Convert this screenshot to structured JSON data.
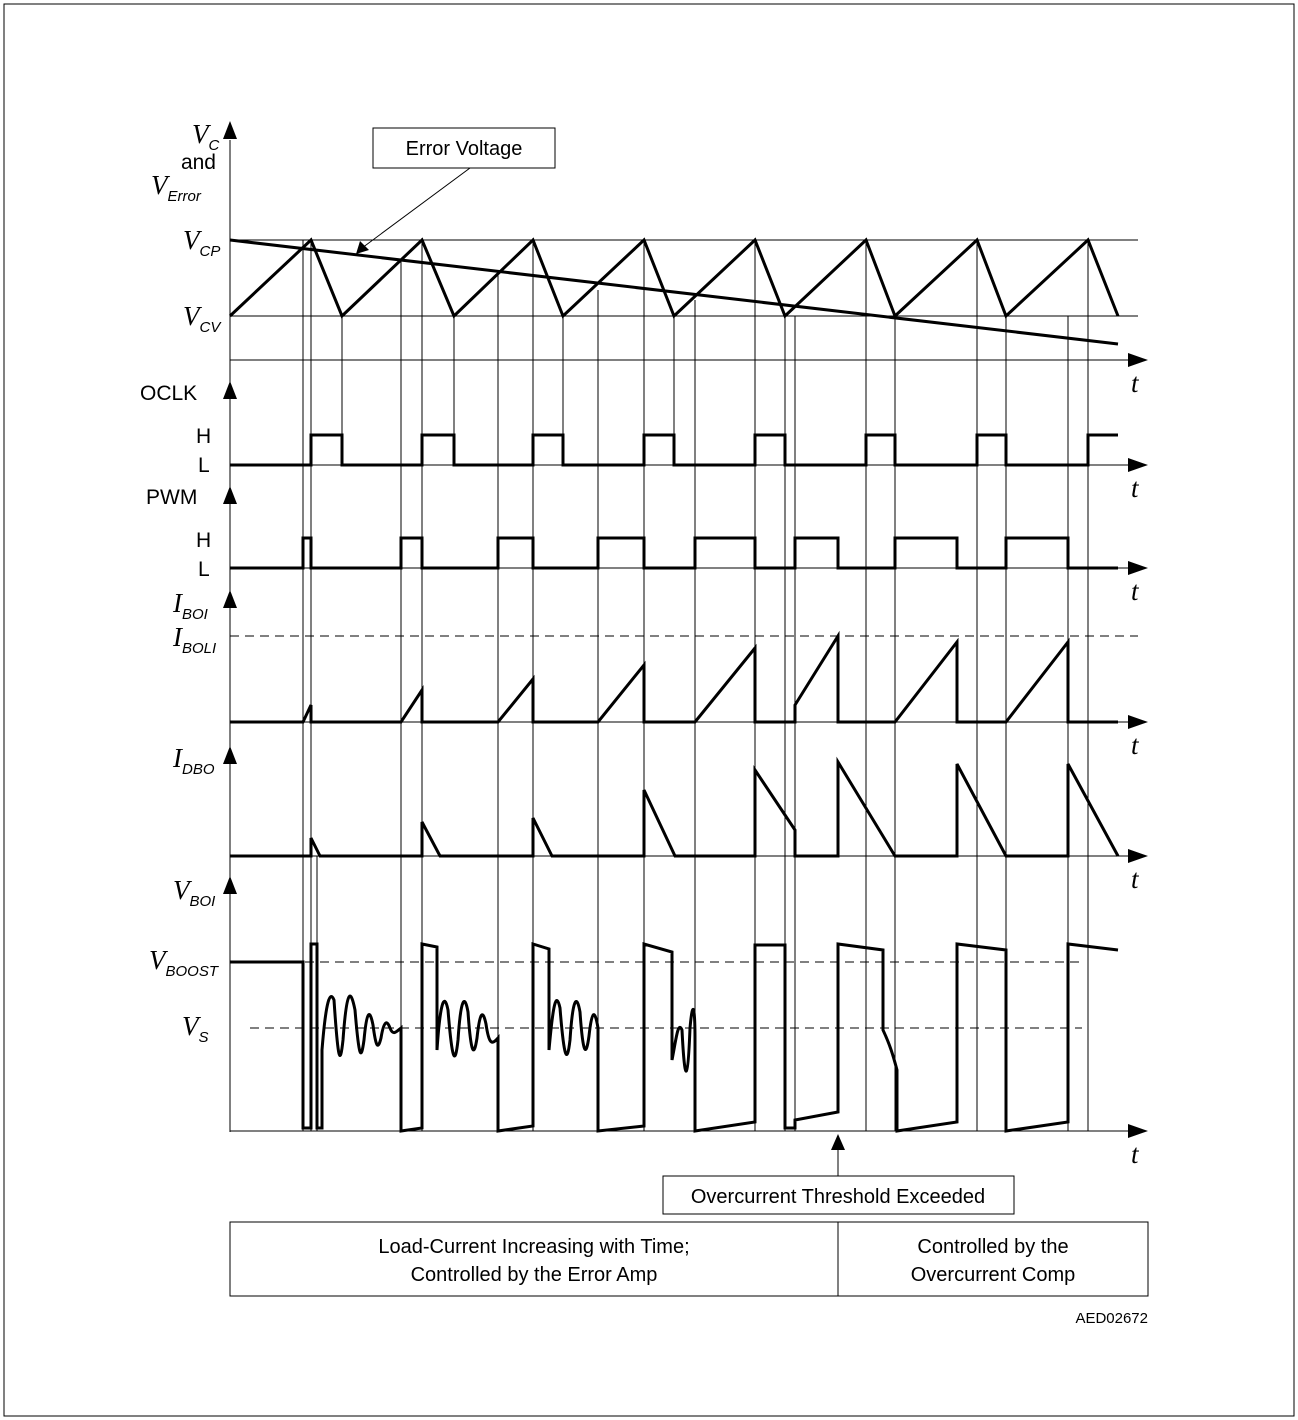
{
  "figure_code": "AED02672",
  "callouts": {
    "error_voltage": "Error Voltage",
    "overcurrent_threshold": "Overcurrent Threshold Exceeded"
  },
  "regions": {
    "left_line1": "Load-Current Increasing with Time;",
    "left_line2": "Controlled by the Error Amp",
    "right_line1": "Controlled by the",
    "right_line2": "Overcurrent Comp"
  },
  "axis_t": "t",
  "signals": {
    "vc": {
      "var": "V",
      "sub": "C",
      "and": "and",
      "var2": "V",
      "sub2": "Error"
    },
    "vcp": {
      "var": "V",
      "sub": "CP"
    },
    "vcv": {
      "var": "V",
      "sub": "CV"
    },
    "oclk": {
      "name": "OCLK",
      "high": "H",
      "low": "L"
    },
    "pwm": {
      "name": "PWM",
      "high": "H",
      "low": "L"
    },
    "iboi": {
      "var": "I",
      "sub": "BOI"
    },
    "iboli": {
      "var": "I",
      "sub": "BOLI"
    },
    "idbo": {
      "var": "I",
      "sub": "DBO"
    },
    "vboi": {
      "var": "V",
      "sub": "BOI"
    },
    "vboost": {
      "var": "V",
      "sub": "BOOST"
    },
    "vs": {
      "var": "V",
      "sub": "S"
    }
  }
}
